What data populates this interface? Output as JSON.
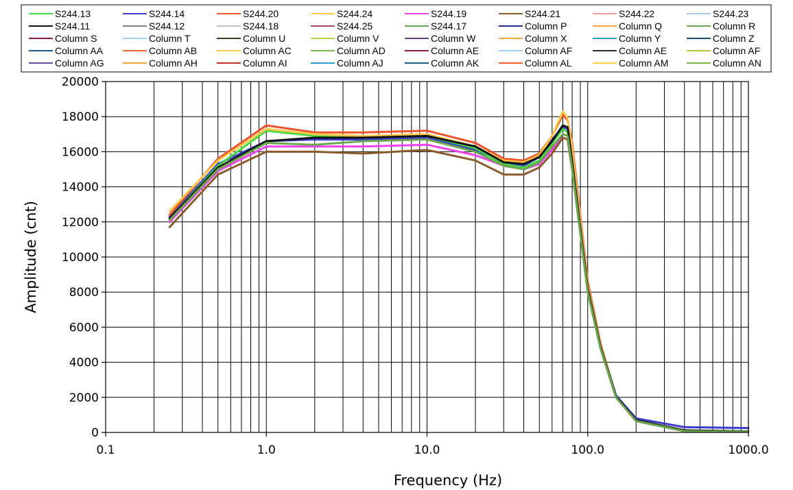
{
  "chart_data": {
    "type": "line",
    "title": "",
    "xlabel": "Frequency (Hz)",
    "ylabel": "Amplitude  (cnt)",
    "xscale": "log",
    "xlim": [
      0.1,
      1000
    ],
    "ylim": [
      0,
      20000
    ],
    "x_tick_labels": [
      "0.1",
      "1.0",
      "10.0",
      "100.0",
      "1000.0"
    ],
    "y_tick_labels": [
      "0",
      "2000",
      "4000",
      "6000",
      "8000",
      "10000",
      "12000",
      "14000",
      "16000",
      "18000",
      "20000"
    ],
    "grid": true,
    "legend_position": "top",
    "x": [
      0.25,
      0.5,
      1,
      2,
      4,
      10,
      20,
      30,
      40,
      50,
      60,
      70,
      75,
      80,
      100,
      120,
      150,
      200,
      400,
      1000
    ],
    "legend": [
      {
        "name": "S244.13",
        "color": "#44d944"
      },
      {
        "name": "S244.14",
        "color": "#3a3acc"
      },
      {
        "name": "S244.20",
        "color": "#f0502a"
      },
      {
        "name": "S244.24",
        "color": "#ffc84a"
      },
      {
        "name": "S244.19",
        "color": "#ee44ee"
      },
      {
        "name": "S244.21",
        "color": "#8b5a2b"
      },
      {
        "name": "S244.22",
        "color": "#f4a09a"
      },
      {
        "name": "S244.23",
        "color": "#a8ccf0"
      },
      {
        "name": "S244.11",
        "color": "#111111"
      },
      {
        "name": "S244.12",
        "color": "#808080"
      },
      {
        "name": "S244.18",
        "color": "#c0c0c0"
      },
      {
        "name": "S244.25",
        "color": "#a8456b"
      },
      {
        "name": "S244.17",
        "color": "#6aa84f"
      },
      {
        "name": "Column P",
        "color": "#1c2a8c"
      },
      {
        "name": "Column Q",
        "color": "#f5a53c"
      },
      {
        "name": "Column R",
        "color": "#6aa84f"
      },
      {
        "name": "Column S",
        "color": "#8b1a3a"
      },
      {
        "name": "Column T",
        "color": "#9ed0f0"
      },
      {
        "name": "Column U",
        "color": "#3b3b1b"
      },
      {
        "name": "Column V",
        "color": "#b5cf4a"
      },
      {
        "name": "Column W",
        "color": "#6b3a8c"
      },
      {
        "name": "Column X",
        "color": "#f5a53c"
      },
      {
        "name": "Column Y",
        "color": "#2aa0d0"
      },
      {
        "name": "Column Z",
        "color": "#1c4a7c"
      },
      {
        "name": "Column AA",
        "color": "#1c5a8c"
      },
      {
        "name": "Column AB",
        "color": "#f0602a"
      },
      {
        "name": "Column AC",
        "color": "#f5d04a"
      },
      {
        "name": "Column AD",
        "color": "#7ab84a"
      },
      {
        "name": "Column AE",
        "color": "#8b1a3a"
      },
      {
        "name": "Column AF",
        "color": "#9ed0f0"
      },
      {
        "name": "Column AE",
        "color": "#2b2b1b"
      },
      {
        "name": "Column AF",
        "color": "#b5bf3a"
      },
      {
        "name": "Column AG",
        "color": "#6b4a9c"
      },
      {
        "name": "Column AH",
        "color": "#f5a53c"
      },
      {
        "name": "Column AI",
        "color": "#c0302a"
      },
      {
        "name": "Column AJ",
        "color": "#2a9ad0"
      },
      {
        "name": "Column AK",
        "color": "#1c5a7c"
      },
      {
        "name": "Column AL",
        "color": "#f0602a"
      },
      {
        "name": "Column AM",
        "color": "#f5d04a"
      },
      {
        "name": "Column AN",
        "color": "#7ab84a"
      }
    ],
    "series": [
      {
        "name": "S244.14",
        "color": "#3a3acc",
        "values": [
          12300,
          15300,
          16600,
          16700,
          16700,
          16800,
          16100,
          15400,
          15200,
          15700,
          16700,
          17400,
          17300,
          15500,
          8200,
          5000,
          2100,
          800,
          300,
          250
        ]
      },
      {
        "name": "S244.13",
        "color": "#44d944",
        "values": [
          12200,
          15200,
          17200,
          16900,
          16800,
          16900,
          16200,
          15300,
          15100,
          15500,
          16500,
          17300,
          17100,
          15200,
          8000,
          4800,
          2000,
          700,
          100,
          50
        ]
      },
      {
        "name": "S244.20",
        "color": "#f0502a",
        "values": [
          12400,
          15600,
          17500,
          17100,
          17100,
          17200,
          16500,
          15600,
          15500,
          15900,
          16900,
          18100,
          17800,
          16500,
          8600,
          5100,
          2000,
          650,
          80,
          40
        ]
      },
      {
        "name": "S244.24",
        "color": "#ffc84a",
        "values": [
          12600,
          15500,
          17300,
          17000,
          16900,
          17000,
          16300,
          15500,
          15400,
          15800,
          16900,
          18300,
          17900,
          16200,
          8400,
          5000,
          2000,
          650,
          70,
          40
        ]
      },
      {
        "name": "S244.19",
        "color": "#ee44ee",
        "values": [
          12000,
          14900,
          16300,
          16300,
          16300,
          16400,
          15800,
          15200,
          15000,
          15300,
          16100,
          17000,
          16900,
          15100,
          8100,
          4900,
          2000,
          650,
          70,
          40
        ]
      },
      {
        "name": "S244.21",
        "color": "#8b5a2b",
        "values": [
          11700,
          14700,
          16000,
          16000,
          15900,
          16100,
          15500,
          14700,
          14700,
          15100,
          15900,
          16800,
          16700,
          15000,
          8000,
          4800,
          2000,
          650,
          70,
          40
        ]
      },
      {
        "name": "S244.11",
        "color": "#111111",
        "values": [
          12200,
          15100,
          16600,
          16800,
          16800,
          16900,
          16300,
          15400,
          15300,
          15700,
          16600,
          17500,
          17400,
          15500,
          8200,
          4900,
          2050,
          700,
          120,
          60
        ]
      },
      {
        "name": "S244.17",
        "color": "#6aa84f",
        "values": [
          12100,
          15000,
          16500,
          16400,
          16600,
          16700,
          16000,
          15200,
          15000,
          15400,
          16300,
          17000,
          16900,
          15100,
          8000,
          4800,
          2000,
          650,
          80,
          40
        ]
      }
    ]
  }
}
